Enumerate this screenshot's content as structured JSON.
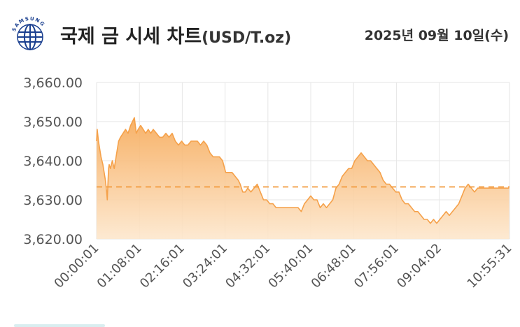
{
  "header": {
    "logo_text": "SAMSUNG",
    "title": "국제 금 시세 차트",
    "unit": "(USD/T.oz)",
    "date": "2025년 09월 10일(수)"
  },
  "colors": {
    "accent": "#f5a14a",
    "fill_top": "#f6a957",
    "fill_bottom": "#fde7cd",
    "reference_line": "#f29a3c",
    "grid": "#e6e6e6",
    "axis_text": "#555555",
    "logo": "#1a3f8f"
  },
  "chart_data": {
    "type": "area",
    "title": "국제 금 시세 차트",
    "unit": "USD/T.oz",
    "xlabel": "",
    "ylabel": "",
    "ylim": [
      3620,
      3660
    ],
    "yticks": [
      "3,620.00",
      "3,630.00",
      "3,640.00",
      "3,650.00",
      "3,660.00"
    ],
    "ytick_values": [
      3620,
      3630,
      3640,
      3650,
      3660
    ],
    "xticks": [
      "00:00:01",
      "01:08:01",
      "02:16:01",
      "03:24:01",
      "04:32:01",
      "05:40:01",
      "06:48:01",
      "07:56:01",
      "09:04:02",
      "10:55:31"
    ],
    "x_minutes": [
      0,
      68,
      136,
      204,
      272,
      340,
      408,
      476,
      544,
      655.5
    ],
    "reference_value": 3633.3,
    "grid": true,
    "series": [
      {
        "x": [
          0,
          1,
          3,
          5,
          7,
          10,
          12,
          14,
          16,
          17,
          18,
          19,
          20,
          22,
          25,
          28,
          32,
          35,
          38,
          42,
          46,
          50,
          54,
          57,
          60,
          63,
          66,
          70,
          74,
          78,
          82,
          86,
          90,
          95,
          100,
          105,
          110,
          115,
          120,
          125,
          130,
          135,
          140,
          145,
          150,
          155,
          160,
          165,
          170,
          175,
          180,
          185,
          190,
          195,
          200,
          205,
          210,
          215,
          220,
          225,
          228,
          232,
          236,
          240,
          245,
          250,
          255,
          260,
          265,
          270,
          275,
          280,
          285,
          290,
          295,
          300,
          305,
          310,
          315,
          320,
          325,
          330,
          335,
          340,
          345,
          350,
          355,
          360,
          365,
          370,
          375,
          380,
          385,
          390,
          395,
          400,
          405,
          410,
          415,
          420,
          425,
          430,
          435,
          440,
          445,
          450,
          455,
          460,
          465,
          470,
          475,
          480,
          485,
          490,
          495,
          500,
          505,
          510,
          515,
          520,
          525,
          530,
          535,
          540,
          545,
          550,
          555,
          560,
          565,
          570,
          575,
          580,
          585,
          590,
          595,
          600,
          605,
          610,
          615,
          620,
          625,
          630,
          635,
          640,
          645,
          650,
          655
        ],
        "values": [
          3645,
          3648,
          3645,
          3643,
          3641,
          3639,
          3637,
          3635,
          3632,
          3630,
          3634,
          3638,
          3639,
          3638,
          3640,
          3638,
          3642,
          3645,
          3646,
          3647,
          3648,
          3647,
          3649,
          3650,
          3651,
          3647,
          3648,
          3649,
          3648,
          3647,
          3648,
          3647,
          3648,
          3647,
          3646,
          3646,
          3647,
          3646,
          3647,
          3645,
          3644,
          3645,
          3644,
          3644,
          3645,
          3645,
          3645,
          3644,
          3645,
          3644,
          3642,
          3641,
          3641,
          3641,
          3640,
          3637,
          3637,
          3637,
          3636,
          3635,
          3634,
          3632,
          3632,
          3633,
          3632,
          3633,
          3634,
          3632,
          3630,
          3630,
          3629,
          3629,
          3628,
          3628,
          3628,
          3628,
          3628,
          3628,
          3628,
          3628,
          3627,
          3629,
          3630,
          3631,
          3630,
          3630,
          3628,
          3629,
          3628,
          3629,
          3630,
          3633,
          3634,
          3636,
          3637,
          3638,
          3638,
          3640,
          3641,
          3642,
          3641,
          3640,
          3640,
          3639,
          3638,
          3637,
          3635,
          3634,
          3634,
          3633,
          3632,
          3632,
          3630,
          3629,
          3629,
          3628,
          3627,
          3627,
          3626,
          3625,
          3625,
          3624,
          3625,
          3624,
          3625,
          3626,
          3627,
          3626,
          3627,
          3628,
          3629,
          3631,
          3633,
          3634,
          3633,
          3632,
          3633,
          3633,
          3633,
          3633,
          3633,
          3633,
          3633,
          3633,
          3633,
          3633,
          3633
        ]
      }
    ]
  }
}
